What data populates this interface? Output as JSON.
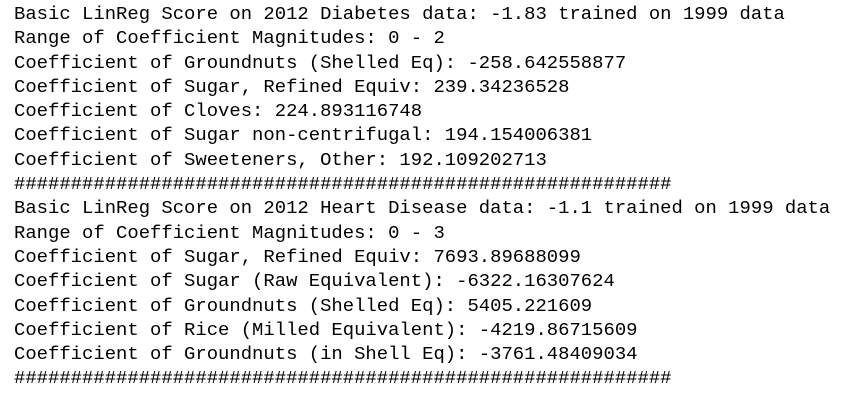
{
  "output": {
    "lines": [
      "Basic LinReg Score on 2012 Diabetes data: -1.83 trained on 1999 data",
      "Range of Coefficient Magnitudes: 0 - 2",
      "Coefficient of Groundnuts (Shelled Eq): -258.642558877",
      "Coefficient of Sugar, Refined Equiv: 239.34236528",
      "Coefficient of Cloves: 224.893116748",
      "Coefficient of Sugar non-centrifugal: 194.154006381",
      "Coefficient of Sweeteners, Other: 192.109202713",
      "##########################################################",
      "Basic LinReg Score on 2012 Heart Disease data: -1.1 trained on 1999 data",
      "Range of Coefficient Magnitudes: 0 - 3",
      "Coefficient of Sugar, Refined Equiv: 7693.89688099",
      "Coefficient of Sugar (Raw Equivalent): -6322.16307624",
      "Coefficient of Groundnuts (Shelled Eq): 5405.221609",
      "Coefficient of Rice (Milled Equivalent): -4219.86715609",
      "Coefficient of Groundnuts (in Shell Eq): -3761.48409034",
      "##########################################################"
    ]
  }
}
